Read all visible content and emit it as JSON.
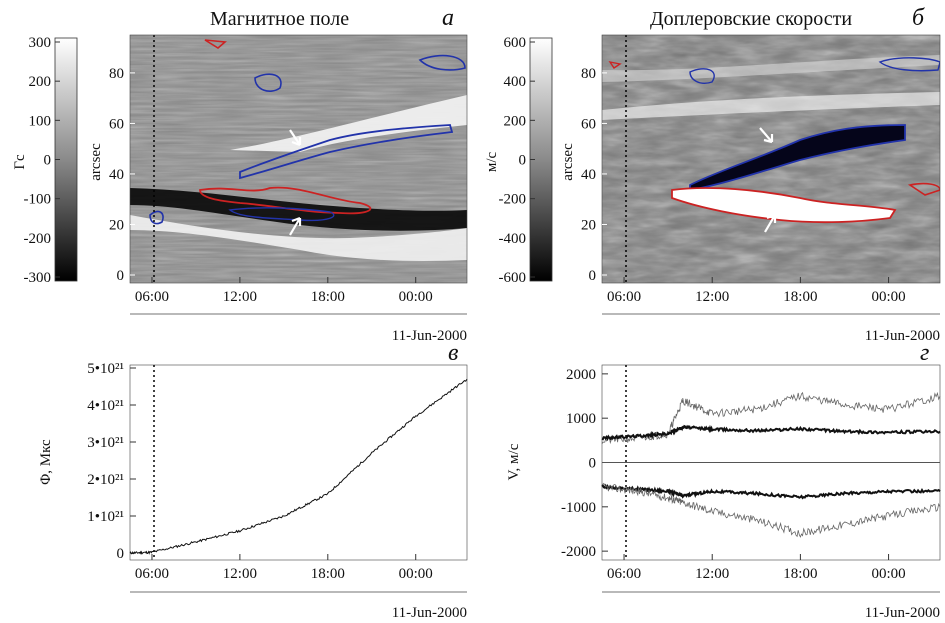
{
  "chart_data": [
    {
      "id": "a",
      "type": "heatmap",
      "title": "Магнитное поле",
      "panel_letter": "а",
      "colorbar": {
        "label": "Гс",
        "ticks": [
          "300",
          "200",
          "100",
          "0",
          "-100",
          "-200",
          "-300"
        ],
        "range": [
          -300,
          300
        ]
      },
      "xlabel": "11-Jun-2000",
      "ylabel": "arcsec",
      "xticks": [
        "06:00",
        "12:00",
        "18:00",
        "00:00"
      ],
      "yticks": [
        "0",
        "20",
        "40",
        "60",
        "80"
      ],
      "ylim": [
        0,
        95
      ],
      "contours": [
        {
          "color": "#cc2222",
          "description": "negative-polarity contour"
        },
        {
          "color": "#2233aa",
          "description": "positive-polarity contour"
        }
      ],
      "vline": "06:00 (dotted)"
    },
    {
      "id": "b",
      "type": "heatmap",
      "title": "Доплеровские скорости",
      "panel_letter": "б",
      "colorbar": {
        "label": "м/с",
        "ticks": [
          "600",
          "400",
          "200",
          "0",
          "-200",
          "-400",
          "-600"
        ],
        "range": [
          -600,
          600
        ]
      },
      "xlabel": "11-Jun-2000",
      "ylabel": "arcsec",
      "xticks": [
        "06:00",
        "12:00",
        "18:00",
        "00:00"
      ],
      "yticks": [
        "0",
        "20",
        "40",
        "60",
        "80"
      ],
      "ylim": [
        0,
        95
      ],
      "vline": "06:00 (dotted)"
    },
    {
      "id": "v",
      "type": "line",
      "panel_letter": "в",
      "xlabel": "11-Jun-2000",
      "ylabel": "Φ, Мкс",
      "xticks": [
        "06:00",
        "12:00",
        "18:00",
        "00:00"
      ],
      "yticks": [
        "0",
        "1•10²¹",
        "2•10²¹",
        "3•10²¹",
        "4•10²¹",
        "5•10²¹"
      ],
      "ylim": [
        0,
        5e+21
      ],
      "series": [
        {
          "values_hours": [
            4.5,
            6,
            9,
            12,
            15,
            18,
            21,
            24,
            27.5
          ],
          "values": [
            0,
            2e+19,
            3e+20,
            6e+20,
            1e+21,
            1.6e+21,
            2.7e+21,
            3.7e+21,
            4.7e+21
          ]
        }
      ]
    },
    {
      "id": "g",
      "type": "line",
      "panel_letter": "г",
      "xlabel": "11-Jun-2000",
      "ylabel": "V, м/с",
      "xticks": [
        "06:00",
        "12:00",
        "18:00",
        "00:00"
      ],
      "yticks": [
        "2000",
        "1000",
        "0",
        "-1000",
        "-2000"
      ],
      "ylim": [
        -2200,
        2200
      ],
      "series": [
        {
          "style": "thin",
          "values_hours": [
            4.5,
            7,
            9,
            10,
            12,
            15,
            18,
            21,
            24,
            27.5
          ],
          "values": [
            500,
            550,
            650,
            1400,
            1100,
            1200,
            1500,
            1300,
            1200,
            1500
          ]
        },
        {
          "style": "thick",
          "values_hours": [
            4.5,
            7,
            9,
            10,
            12,
            15,
            18,
            21,
            24,
            27.5
          ],
          "values": [
            550,
            600,
            650,
            800,
            750,
            720,
            760,
            700,
            680,
            700
          ]
        },
        {
          "style": "thick",
          "values_hours": [
            4.5,
            7,
            9,
            10,
            12,
            15,
            18,
            21,
            24,
            27.5
          ],
          "values": [
            -550,
            -600,
            -650,
            -750,
            -650,
            -700,
            -780,
            -700,
            -650,
            -650
          ]
        },
        {
          "style": "thin",
          "values_hours": [
            4.5,
            7,
            9,
            10,
            12,
            15,
            18,
            21,
            24,
            27.5
          ],
          "values": [
            -550,
            -650,
            -800,
            -900,
            -1100,
            -1300,
            -1600,
            -1400,
            -1200,
            -1000
          ]
        }
      ]
    }
  ]
}
